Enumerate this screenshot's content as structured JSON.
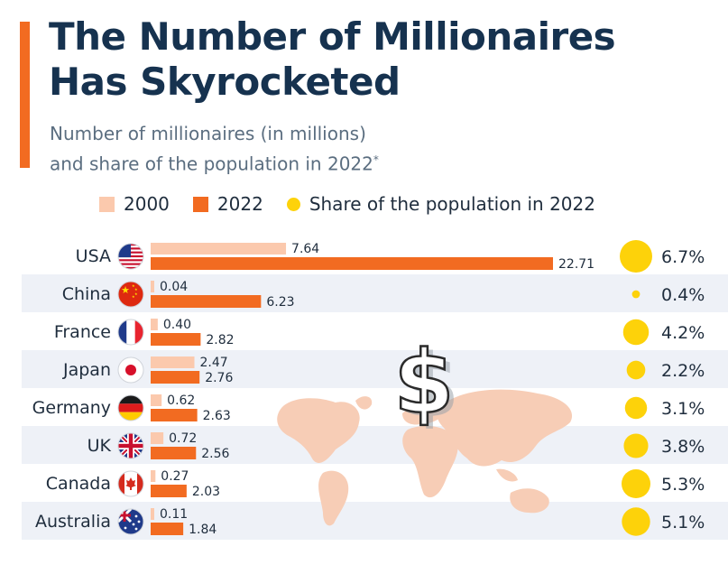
{
  "header": {
    "title_line1": "The Number of Millionaires",
    "title_line2": "Has Skyrocketed",
    "subtitle_line1": "Number of millionaires (in millions)",
    "subtitle_line2": "and share of the population in 2022",
    "subtitle_note_mark": "*"
  },
  "legend": {
    "items": [
      {
        "label": "2000",
        "color": "#fbc9ad"
      },
      {
        "label": "2022",
        "color": "#f26b21"
      },
      {
        "label": "Share of the population in 2022",
        "color": "#fdd20a"
      }
    ]
  },
  "colors": {
    "bar_2000": "#fbc9ad",
    "bar_2022": "#f26b21",
    "bubble": "#fdd20a",
    "accent": "#f26b21",
    "row_band": "#eef1f7",
    "map": "#f7cdb6",
    "dollar_sign": "#ffffff"
  },
  "decoration": {
    "background": "world-map-with-dollar-sign-icon"
  },
  "chart_data": {
    "type": "bar",
    "orientation": "horizontal",
    "categories": [
      "USA",
      "China",
      "France",
      "Japan",
      "Germany",
      "UK",
      "Canada",
      "Australia"
    ],
    "flags": [
      "us-flag-icon",
      "china-flag-icon",
      "france-flag-icon",
      "japan-flag-icon",
      "germany-flag-icon",
      "uk-flag-icon",
      "canada-flag-icon",
      "australia-flag-icon"
    ],
    "series": [
      {
        "name": "2000",
        "values": [
          7.64,
          0.04,
          0.4,
          2.47,
          0.62,
          0.72,
          0.27,
          0.11
        ],
        "labels": [
          "7.64",
          "0.04",
          "0.40",
          "2.47",
          "0.62",
          "0.72",
          "0.27",
          "0.11"
        ]
      },
      {
        "name": "2022",
        "values": [
          22.71,
          6.23,
          2.82,
          2.76,
          2.63,
          2.56,
          2.03,
          1.84
        ],
        "labels": [
          "22.71",
          "6.23",
          "2.82",
          "2.76",
          "2.63",
          "2.56",
          "2.03",
          "1.84"
        ]
      }
    ],
    "share": {
      "name": "Share of the population in 2022",
      "values": [
        6.7,
        0.4,
        4.2,
        2.2,
        3.1,
        3.8,
        5.3,
        5.1
      ],
      "labels": [
        "6.7%",
        "0.4%",
        "4.2%",
        "2.2%",
        "3.1%",
        "3.8%",
        "5.3%",
        "5.1%"
      ]
    },
    "xlim": [
      0,
      22.71
    ],
    "grid": false,
    "legend_position": "top"
  }
}
